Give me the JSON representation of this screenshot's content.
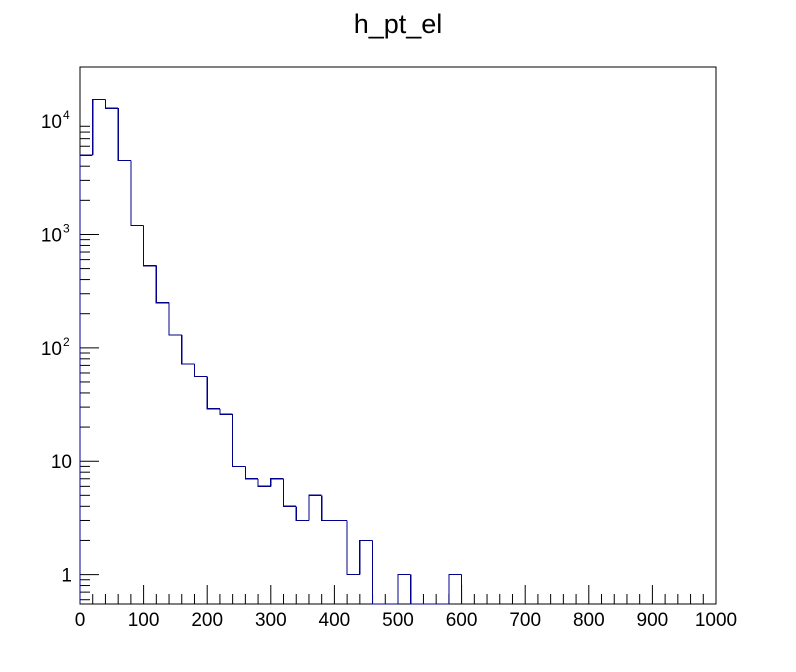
{
  "chart_data": {
    "type": "histogram",
    "title": "h_pt_el",
    "xlabel": "",
    "ylabel": "",
    "x_range": [
      0,
      1000
    ],
    "y_scale": "log",
    "y_range": [
      0.55,
      30000
    ],
    "bin_width": 20,
    "x_tick_labels": [
      "0",
      "100",
      "200",
      "300",
      "400",
      "500",
      "600",
      "700",
      "800",
      "900",
      "1000"
    ],
    "y_tick_labels": [
      {
        "value": 1,
        "base": "1",
        "exp": ""
      },
      {
        "value": 10,
        "base": "10",
        "exp": ""
      },
      {
        "value": 100,
        "base": "10",
        "exp": "2"
      },
      {
        "value": 1000,
        "base": "10",
        "exp": "3"
      },
      {
        "value": 10000,
        "base": "10",
        "exp": "4"
      }
    ],
    "grid": false,
    "legend": "none",
    "line_color": "#00008b",
    "bins": [
      {
        "x_low": 0,
        "x_high": 20,
        "count": 5000
      },
      {
        "x_low": 20,
        "x_high": 40,
        "count": 15500
      },
      {
        "x_low": 40,
        "x_high": 60,
        "count": 13000
      },
      {
        "x_low": 60,
        "x_high": 80,
        "count": 4500
      },
      {
        "x_low": 80,
        "x_high": 100,
        "count": 1200
      },
      {
        "x_low": 100,
        "x_high": 120,
        "count": 530
      },
      {
        "x_low": 120,
        "x_high": 140,
        "count": 250
      },
      {
        "x_low": 140,
        "x_high": 160,
        "count": 130
      },
      {
        "x_low": 160,
        "x_high": 180,
        "count": 72
      },
      {
        "x_low": 180,
        "x_high": 200,
        "count": 56
      },
      {
        "x_low": 200,
        "x_high": 220,
        "count": 29
      },
      {
        "x_low": 220,
        "x_high": 240,
        "count": 26
      },
      {
        "x_low": 240,
        "x_high": 260,
        "count": 9
      },
      {
        "x_low": 260,
        "x_high": 280,
        "count": 7
      },
      {
        "x_low": 280,
        "x_high": 300,
        "count": 6
      },
      {
        "x_low": 300,
        "x_high": 320,
        "count": 7
      },
      {
        "x_low": 320,
        "x_high": 340,
        "count": 4
      },
      {
        "x_low": 340,
        "x_high": 360,
        "count": 3
      },
      {
        "x_low": 360,
        "x_high": 380,
        "count": 5
      },
      {
        "x_low": 380,
        "x_high": 400,
        "count": 3
      },
      {
        "x_low": 400,
        "x_high": 420,
        "count": 3
      },
      {
        "x_low": 420,
        "x_high": 440,
        "count": 1
      },
      {
        "x_low": 440,
        "x_high": 460,
        "count": 2
      },
      {
        "x_low": 460,
        "x_high": 480,
        "count": 0
      },
      {
        "x_low": 480,
        "x_high": 500,
        "count": 0
      },
      {
        "x_low": 500,
        "x_high": 520,
        "count": 1
      },
      {
        "x_low": 520,
        "x_high": 540,
        "count": 0
      },
      {
        "x_low": 540,
        "x_high": 560,
        "count": 0
      },
      {
        "x_low": 560,
        "x_high": 580,
        "count": 0
      },
      {
        "x_low": 580,
        "x_high": 600,
        "count": 1
      }
    ]
  }
}
